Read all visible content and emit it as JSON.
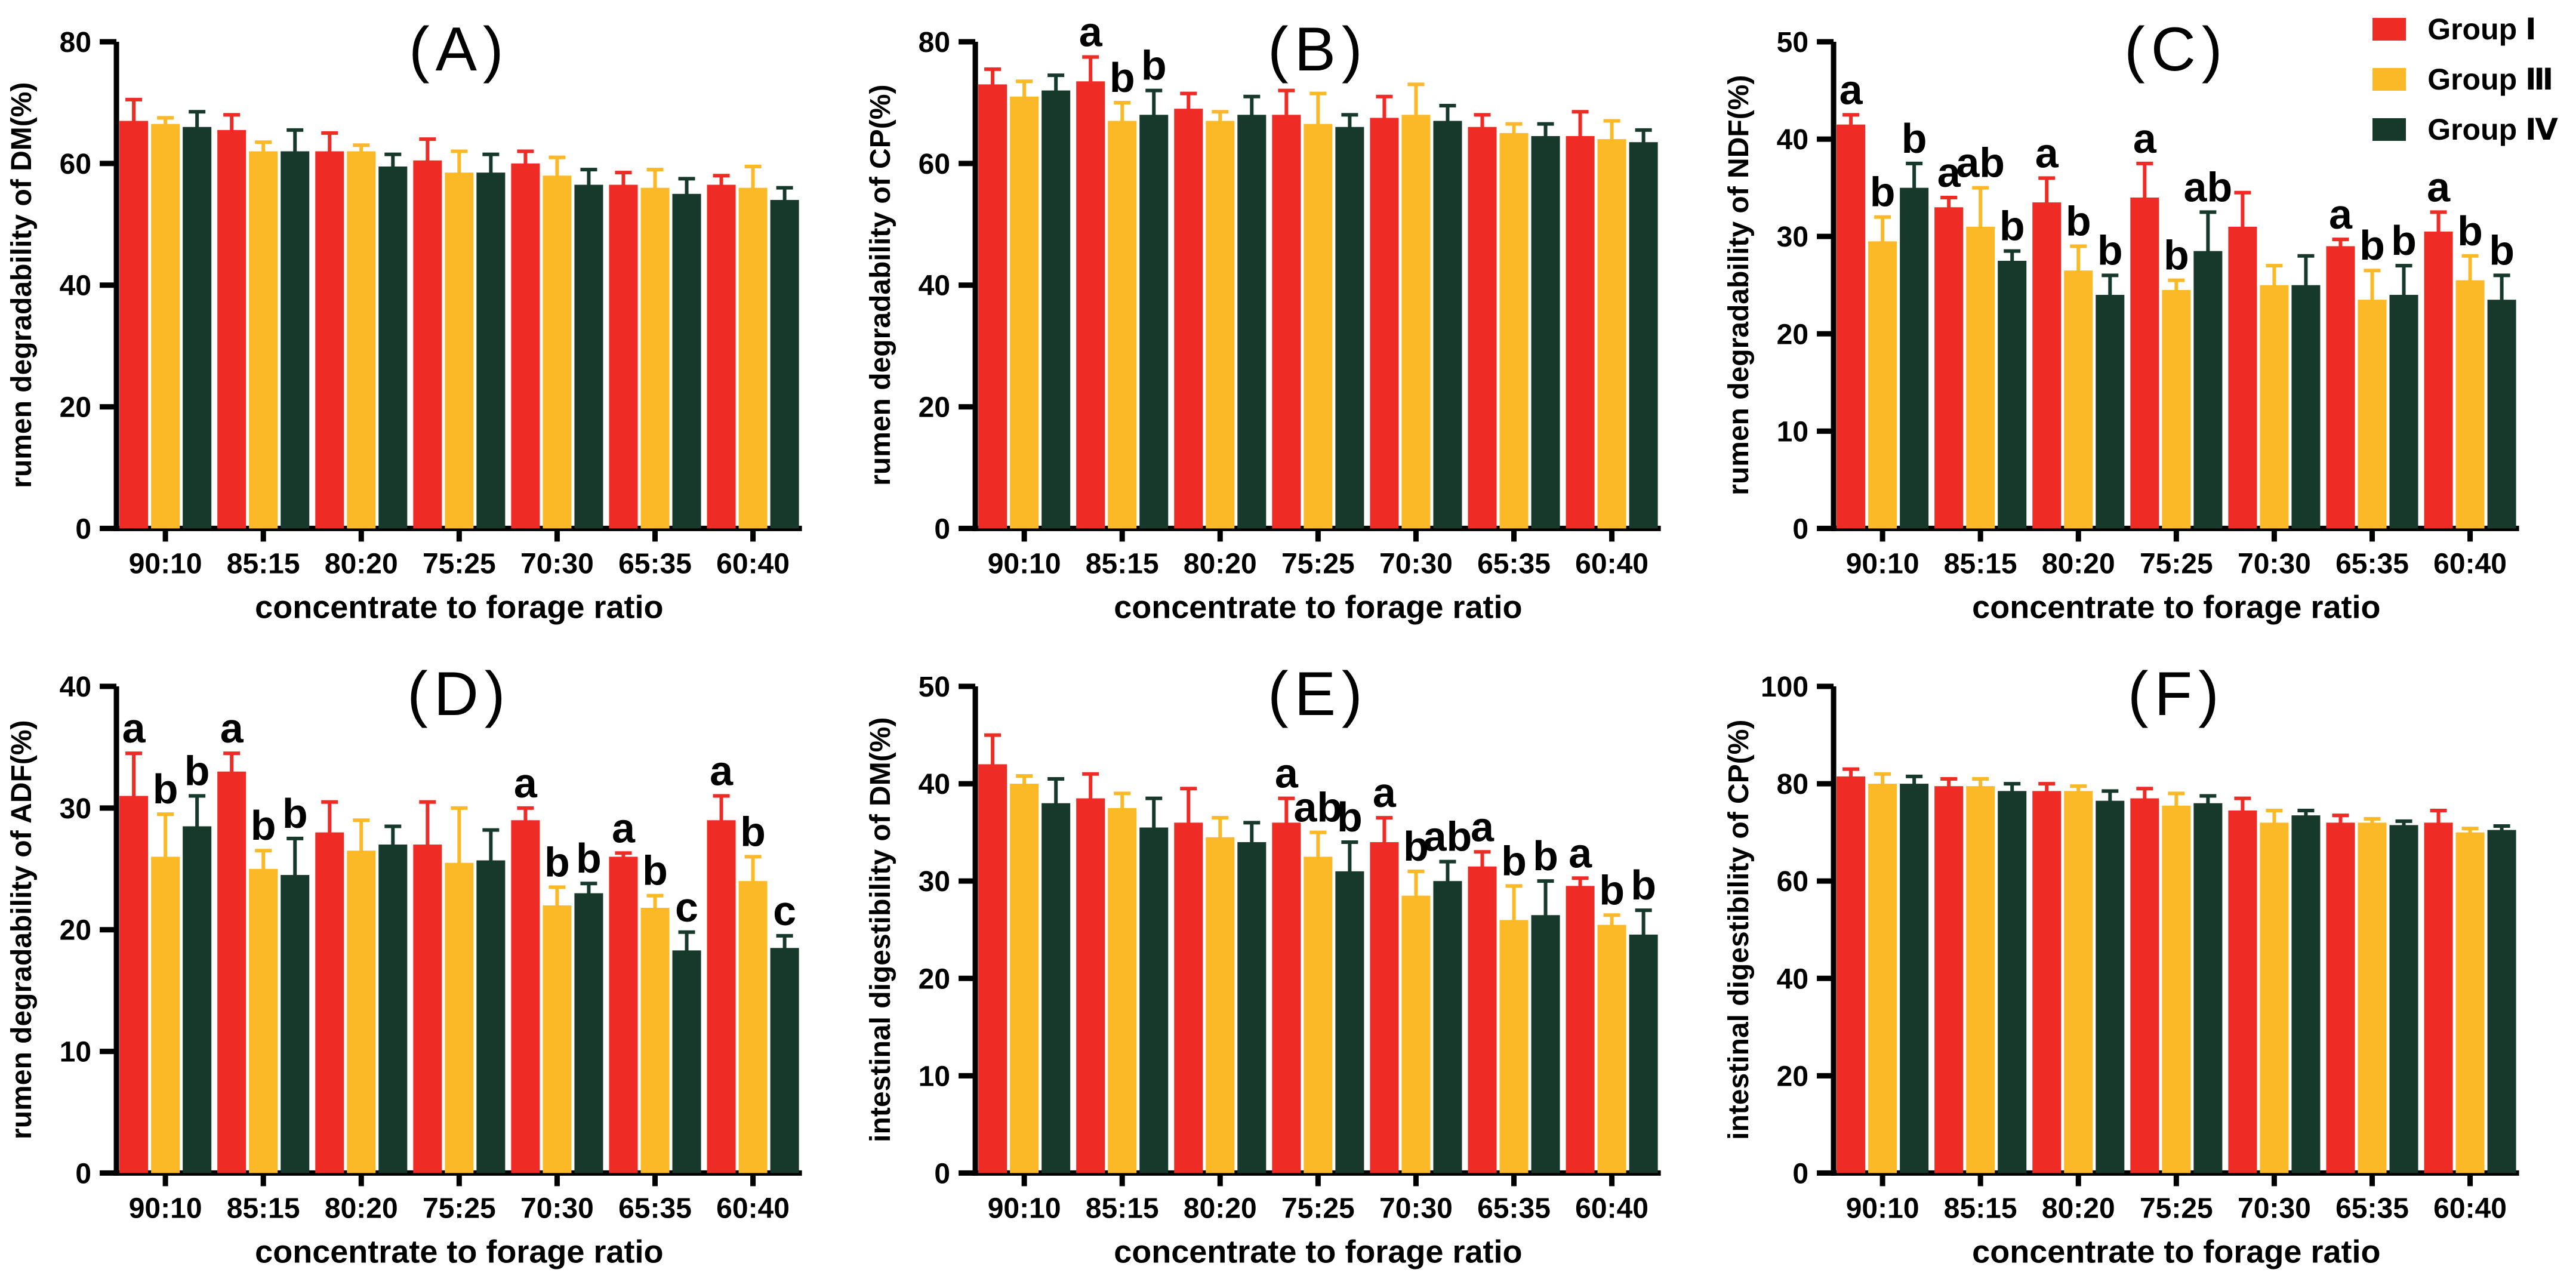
{
  "figure": {
    "xlabel": "concentrate to forage ratio",
    "categories": [
      "90:10",
      "85:15",
      "80:20",
      "75:25",
      "70:30",
      "65:35",
      "60:40"
    ],
    "legend": [
      {
        "label": "Group Ⅰ",
        "color": "#EE2B24"
      },
      {
        "label": "Group Ⅲ",
        "color": "#FBB827"
      },
      {
        "label": "Group Ⅳ",
        "color": "#16392C"
      }
    ]
  },
  "chart_data": [
    {
      "type": "bar",
      "title": "(A)",
      "ylabel": "rumen degradability of DM(%)",
      "xlabel": "concentrate to forage ratio",
      "ylim": [
        0,
        80
      ],
      "ystep": 20,
      "grid": false,
      "legend_position": "top-right-of-figure",
      "categories": [
        "90:10",
        "85:15",
        "80:20",
        "75:25",
        "70:30",
        "65:35",
        "60:40"
      ],
      "series": [
        {
          "name": "Group Ⅰ",
          "color": "#EE2B24",
          "values": [
            67,
            65.5,
            62,
            60.5,
            60,
            56.5,
            56.5
          ],
          "errors": [
            3.5,
            2.5,
            3,
            3.5,
            2,
            2,
            1.5
          ],
          "letters": [
            "",
            "",
            "",
            "",
            "",
            "",
            ""
          ]
        },
        {
          "name": "Group Ⅲ",
          "color": "#FBB827",
          "values": [
            66.5,
            62,
            62,
            58.5,
            58,
            56,
            56
          ],
          "errors": [
            1,
            1.5,
            1,
            3.5,
            3,
            3,
            3.5
          ],
          "letters": [
            "",
            "",
            "",
            "",
            "",
            "",
            ""
          ]
        },
        {
          "name": "Group Ⅳ",
          "color": "#16392C",
          "values": [
            66,
            62,
            59.5,
            58.5,
            56.5,
            55,
            54
          ],
          "errors": [
            2.5,
            3.5,
            2,
            3,
            2.5,
            2.5,
            2
          ],
          "letters": [
            "",
            "",
            "",
            "",
            "",
            "",
            ""
          ]
        }
      ]
    },
    {
      "type": "bar",
      "title": "(B)",
      "ylabel": "rumen degradability of CP(%)",
      "xlabel": "concentrate to forage ratio",
      "ylim": [
        0,
        80
      ],
      "ystep": 20,
      "grid": false,
      "categories": [
        "90:10",
        "85:15",
        "80:20",
        "75:25",
        "70:30",
        "65:35",
        "60:40"
      ],
      "series": [
        {
          "name": "Group Ⅰ",
          "color": "#EE2B24",
          "values": [
            73,
            73.5,
            69,
            68,
            67.5,
            66,
            64.5
          ],
          "errors": [
            2.5,
            4,
            2.5,
            4,
            3.5,
            2,
            4
          ],
          "letters": [
            "",
            "a",
            "",
            "",
            "",
            "",
            ""
          ]
        },
        {
          "name": "Group Ⅲ",
          "color": "#FBB827",
          "values": [
            71,
            67,
            67,
            66.5,
            68,
            65,
            64
          ],
          "errors": [
            2.5,
            3,
            1.5,
            5,
            5,
            1.5,
            3
          ],
          "letters": [
            "",
            "b",
            "",
            "",
            "",
            "",
            ""
          ]
        },
        {
          "name": "Group Ⅳ",
          "color": "#16392C",
          "values": [
            72,
            68,
            68,
            66,
            67,
            64.5,
            63.5
          ],
          "errors": [
            2.5,
            4,
            3,
            2,
            2.5,
            2,
            2
          ],
          "letters": [
            "",
            "b",
            "",
            "",
            "",
            "",
            ""
          ]
        }
      ]
    },
    {
      "type": "bar",
      "title": "(C)",
      "ylabel": "rumen degradability of NDF(%)",
      "xlabel": "concentrate to forage ratio",
      "ylim": [
        0,
        50
      ],
      "ystep": 10,
      "grid": false,
      "categories": [
        "90:10",
        "85:15",
        "80:20",
        "75:25",
        "70:30",
        "65:35",
        "60:40"
      ],
      "series": [
        {
          "name": "Group Ⅰ",
          "color": "#EE2B24",
          "values": [
            41.5,
            33,
            33.5,
            34,
            31,
            29,
            30.5
          ],
          "errors": [
            1,
            1,
            2.5,
            3.5,
            3.5,
            0.7,
            2
          ],
          "letters": [
            "a",
            "a",
            "a",
            "a",
            "",
            "a",
            "a"
          ]
        },
        {
          "name": "Group Ⅲ",
          "color": "#FBB827",
          "values": [
            29.5,
            31,
            26.5,
            24.5,
            25,
            23.5,
            25.5
          ],
          "errors": [
            2.5,
            4,
            2.5,
            1,
            2,
            3,
            2.5
          ],
          "letters": [
            "b",
            "ab",
            "b",
            "b",
            "",
            "b",
            "b"
          ]
        },
        {
          "name": "Group Ⅳ",
          "color": "#16392C",
          "values": [
            35,
            27.5,
            24,
            28.5,
            25,
            24,
            23.5
          ],
          "errors": [
            2.5,
            1,
            2,
            4,
            3,
            3,
            2.5
          ],
          "letters": [
            "b",
            "b",
            "b",
            "ab",
            "",
            "b",
            "b"
          ]
        }
      ]
    },
    {
      "type": "bar",
      "title": "(D)",
      "ylabel": "rumen degradability of ADF(%)",
      "xlabel": "concentrate to forage ratio",
      "ylim": [
        0,
        40
      ],
      "ystep": 10,
      "grid": false,
      "categories": [
        "90:10",
        "85:15",
        "80:20",
        "75:25",
        "70:30",
        "65:35",
        "60:40"
      ],
      "series": [
        {
          "name": "Group Ⅰ",
          "color": "#EE2B24",
          "values": [
            31,
            33,
            28,
            27,
            29,
            26,
            29
          ],
          "errors": [
            3.5,
            1.5,
            2.5,
            3.5,
            1,
            0.3,
            2
          ],
          "letters": [
            "a",
            "a",
            "",
            "",
            "a",
            "a",
            "a"
          ]
        },
        {
          "name": "Group Ⅲ",
          "color": "#FBB827",
          "values": [
            26,
            25,
            26.5,
            25.5,
            22,
            21.8,
            24
          ],
          "errors": [
            3.5,
            1.5,
            2.5,
            4.5,
            1.5,
            1,
            2
          ],
          "letters": [
            "b",
            "b",
            "",
            "",
            "b",
            "b",
            "b"
          ]
        },
        {
          "name": "Group Ⅳ",
          "color": "#16392C",
          "values": [
            28.5,
            24.5,
            27,
            25.7,
            23,
            18.3,
            18.5
          ],
          "errors": [
            2.5,
            3,
            1.5,
            2.5,
            0.8,
            1.5,
            1
          ],
          "letters": [
            "b",
            "b",
            "",
            "",
            "b",
            "c",
            "c"
          ]
        }
      ]
    },
    {
      "type": "bar",
      "title": "(E)",
      "ylabel": "intestinal digestibility of DM(%)",
      "xlabel": "concentrate to forage ratio",
      "ylim": [
        0,
        50
      ],
      "ystep": 10,
      "grid": false,
      "categories": [
        "90:10",
        "85:15",
        "80:20",
        "75:25",
        "70:30",
        "65:35",
        "60:40"
      ],
      "series": [
        {
          "name": "Group Ⅰ",
          "color": "#EE2B24",
          "values": [
            42,
            38.5,
            36,
            36,
            34,
            31.5,
            29.5
          ],
          "errors": [
            3,
            2.5,
            3.5,
            2.5,
            2.5,
            1.5,
            0.8
          ],
          "letters": [
            "",
            "",
            "",
            "a",
            "a",
            "a",
            "a"
          ]
        },
        {
          "name": "Group Ⅲ",
          "color": "#FBB827",
          "values": [
            40,
            37.5,
            34.5,
            32.5,
            28.5,
            26,
            25.5
          ],
          "errors": [
            0.8,
            1.5,
            2,
            2.5,
            2.5,
            3.5,
            1
          ],
          "letters": [
            "",
            "",
            "",
            "ab",
            "b",
            "b",
            "b"
          ]
        },
        {
          "name": "Group Ⅳ",
          "color": "#16392C",
          "values": [
            38,
            35.5,
            34,
            31,
            30,
            26.5,
            24.5
          ],
          "errors": [
            2.5,
            3,
            2,
            3,
            2,
            3.5,
            2.5
          ],
          "letters": [
            "",
            "",
            "",
            "b",
            "ab",
            "b",
            "b"
          ]
        }
      ]
    },
    {
      "type": "bar",
      "title": "(F)",
      "ylabel": "intestinal digestibility of CP(%)",
      "xlabel": "concentrate to forage ratio",
      "ylim": [
        0,
        100
      ],
      "ystep": 20,
      "grid": false,
      "categories": [
        "90:10",
        "85:15",
        "80:20",
        "75:25",
        "70:30",
        "65:35",
        "60:40"
      ],
      "series": [
        {
          "name": "Group Ⅰ",
          "color": "#EE2B24",
          "values": [
            81.5,
            79.5,
            78.5,
            77,
            74.5,
            72,
            72
          ],
          "errors": [
            1.5,
            1.5,
            1.5,
            2,
            2.5,
            1.5,
            2.5
          ],
          "letters": [
            "",
            "",
            "",
            "",
            "",
            "",
            ""
          ]
        },
        {
          "name": "Group Ⅲ",
          "color": "#FBB827",
          "values": [
            80,
            79.5,
            78.5,
            75.5,
            72,
            72,
            70
          ],
          "errors": [
            2,
            1.5,
            1,
            2.5,
            2.5,
            0.8,
            0.8
          ],
          "letters": [
            "",
            "",
            "",
            "",
            "",
            "",
            ""
          ]
        },
        {
          "name": "Group Ⅳ",
          "color": "#16392C",
          "values": [
            80,
            78.5,
            76.5,
            76,
            73.5,
            71.5,
            70.5
          ],
          "errors": [
            1.5,
            1.5,
            2,
            1.5,
            1,
            0.8,
            0.8
          ],
          "letters": [
            "",
            "",
            "",
            "",
            "",
            "",
            ""
          ]
        }
      ]
    }
  ]
}
